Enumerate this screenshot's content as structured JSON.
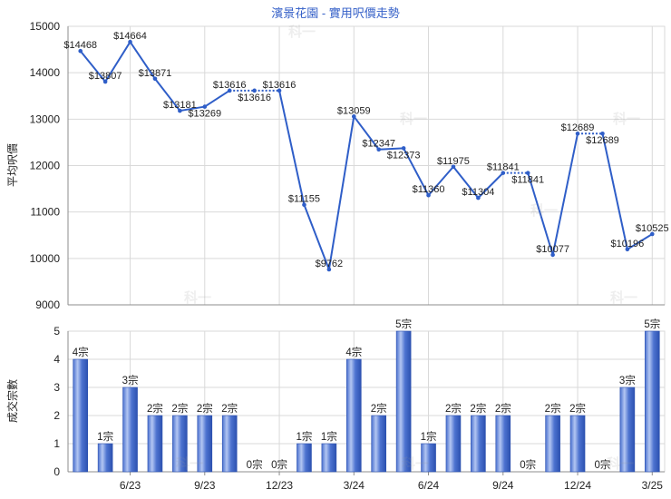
{
  "chart_data": [
    {
      "type": "line",
      "title": "濱景花園 - 實用呎價走勢",
      "ylabel": "平均呎價",
      "ylim": [
        9000,
        15000
      ],
      "yticks": [
        9000,
        10000,
        11000,
        12000,
        13000,
        14000,
        15000
      ],
      "x": [
        "4/23",
        "5/23",
        "6/23",
        "7/23",
        "8/23",
        "9/23",
        "10/23",
        "11/23",
        "12/23",
        "1/24",
        "2/24",
        "3/24",
        "4/24",
        "5/24",
        "6/24",
        "7/24",
        "8/24",
        "9/24",
        "10/24",
        "11/24",
        "12/24",
        "1/25",
        "2/25",
        "3/25"
      ],
      "values": [
        14468,
        13807,
        14664,
        13871,
        13181,
        13269,
        13616,
        13616,
        13616,
        11155,
        9762,
        13059,
        12347,
        12373,
        11360,
        11975,
        11304,
        11841,
        11841,
        10077,
        12689,
        12689,
        10196,
        10525
      ],
      "data_labels": [
        "$14468",
        "$13807",
        "$14664",
        "$13871",
        "$13181",
        "$13269",
        "$13616",
        "$13616",
        "$13616",
        "$11155",
        "$9762",
        "$13059",
        "$12347",
        "$12373",
        "$11360",
        "$11975",
        "$11304",
        "$11841",
        "$11841",
        "$10077",
        "$12689",
        "$12689",
        "$10196",
        "$10525"
      ],
      "grid": true,
      "color": "#2f5ec8"
    },
    {
      "type": "bar",
      "ylabel": "成交宗數",
      "ylim": [
        0,
        5
      ],
      "yticks": [
        0,
        1,
        2,
        3,
        4,
        5
      ],
      "x": [
        "4/23",
        "5/23",
        "6/23",
        "7/23",
        "8/23",
        "9/23",
        "10/23",
        "11/23",
        "12/23",
        "1/24",
        "2/24",
        "3/24",
        "4/24",
        "5/24",
        "6/24",
        "7/24",
        "8/24",
        "9/24",
        "10/24",
        "11/24",
        "12/24",
        "1/25",
        "2/25",
        "3/25"
      ],
      "xticks": [
        "6/23",
        "9/23",
        "12/23",
        "3/24",
        "6/24",
        "9/24",
        "12/24",
        "3/25"
      ],
      "values": [
        4,
        1,
        3,
        2,
        2,
        2,
        2,
        0,
        0,
        1,
        1,
        4,
        2,
        5,
        1,
        2,
        2,
        2,
        0,
        2,
        2,
        0,
        3,
        5
      ],
      "data_labels": [
        "4宗",
        "1宗",
        "3宗",
        "2宗",
        "2宗",
        "2宗",
        "2宗",
        "0宗",
        "0宗",
        "1宗",
        "1宗",
        "4宗",
        "2宗",
        "5宗",
        "1宗",
        "2宗",
        "2宗",
        "2宗",
        "0宗",
        "2宗",
        "2宗",
        "0宗",
        "3宗",
        "5宗"
      ],
      "grid": true,
      "color": "#2c51b0"
    }
  ],
  "watermark": "科一",
  "colors": {
    "title": "#3560c8",
    "grid": "#d9d9d9",
    "axis": "#8c8c8c"
  }
}
